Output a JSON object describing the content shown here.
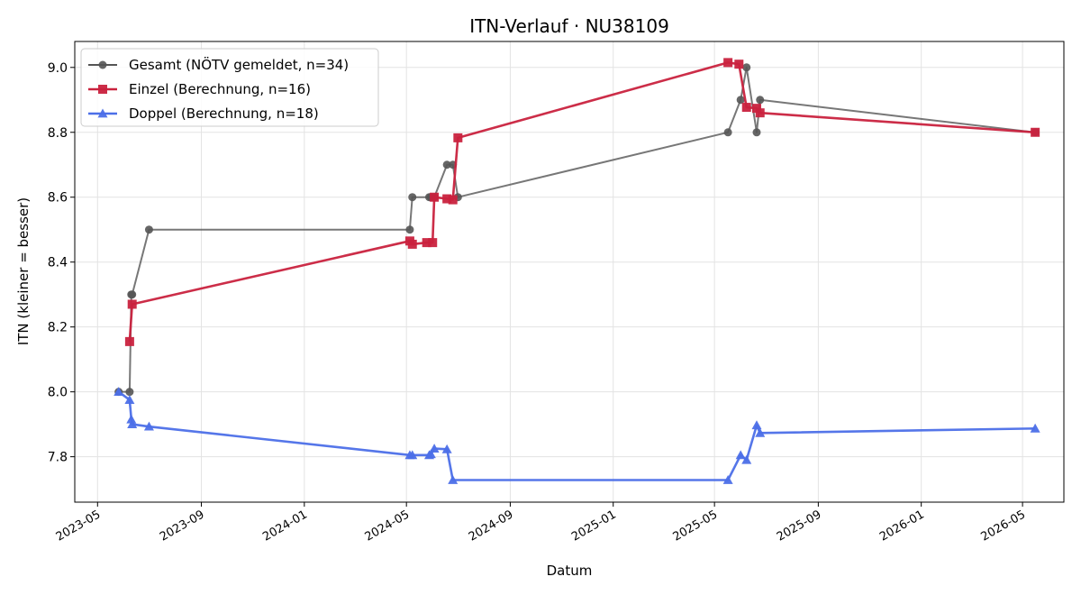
{
  "chart_data": {
    "type": "line",
    "title": "ITN-Verlauf · NU38109",
    "xlabel": "Datum",
    "ylabel": "ITN  (kleiner = besser)",
    "x_ticks": [
      "2023-05",
      "2023-09",
      "2024-01",
      "2024-05",
      "2024-09",
      "2025-01",
      "2025-05",
      "2025-09",
      "2026-01",
      "2026-05"
    ],
    "y_ticks": [
      "7.8",
      "8.0",
      "8.2",
      "8.4",
      "8.6",
      "8.8",
      "9.0"
    ],
    "xlim": [
      "2023-04-04",
      "2026-06-19"
    ],
    "ylim": [
      7.66,
      9.08
    ],
    "grid": true,
    "legend_position": "top-left",
    "series": [
      {
        "name": "Gesamt (NÖTV gemeldet, n=34)",
        "color": "#555555",
        "marker": "circle",
        "x": [
          "2023-05-26",
          "2023-06-08",
          "2023-06-10",
          "2023-06-11",
          "2023-07-01",
          "2024-05-05",
          "2024-05-08",
          "2024-05-28",
          "2024-05-30",
          "2024-06-03",
          "2024-06-18",
          "2024-06-25",
          "2024-07-01",
          "2025-05-17",
          "2025-06-01",
          "2025-06-08",
          "2025-06-20",
          "2025-06-24",
          "2026-05-16"
        ],
        "values": [
          8.0,
          8.0,
          8.3,
          8.3,
          8.5,
          8.5,
          8.6,
          8.6,
          8.6,
          8.6,
          8.7,
          8.7,
          8.6,
          8.8,
          8.9,
          9.0,
          8.8,
          8.9,
          8.8
        ]
      },
      {
        "name": "Einzel (Berechnung, n=16)",
        "color": "#c9223e",
        "marker": "square",
        "x": [
          "2023-06-08",
          "2023-06-11",
          "2024-05-05",
          "2024-05-08",
          "2024-05-25",
          "2024-06-01",
          "2024-06-03",
          "2024-06-18",
          "2024-06-25",
          "2024-07-01",
          "2025-05-17",
          "2025-05-30",
          "2025-06-08",
          "2025-06-20",
          "2025-06-24",
          "2026-05-16"
        ],
        "values": [
          8.155,
          8.27,
          8.465,
          8.455,
          8.46,
          8.46,
          8.6,
          8.595,
          8.592,
          8.783,
          9.015,
          9.01,
          8.877,
          8.874,
          8.86,
          8.8
        ]
      },
      {
        "name": "Doppel (Berechnung, n=18)",
        "color": "#4c6fe8",
        "marker": "triangle",
        "x": [
          "2023-05-26",
          "2023-06-08",
          "2023-06-10",
          "2023-06-11",
          "2023-07-01",
          "2024-05-05",
          "2024-05-08",
          "2024-05-28",
          "2024-05-30",
          "2024-06-03",
          "2024-06-18",
          "2024-06-25",
          "2025-05-17",
          "2025-06-01",
          "2025-06-08",
          "2025-06-20",
          "2025-06-24",
          "2026-05-16"
        ],
        "values": [
          8.0,
          7.975,
          7.915,
          7.9,
          7.893,
          7.805,
          7.805,
          7.805,
          7.808,
          7.825,
          7.823,
          7.728,
          7.728,
          7.805,
          7.79,
          7.897,
          7.873,
          7.887
        ]
      }
    ]
  }
}
